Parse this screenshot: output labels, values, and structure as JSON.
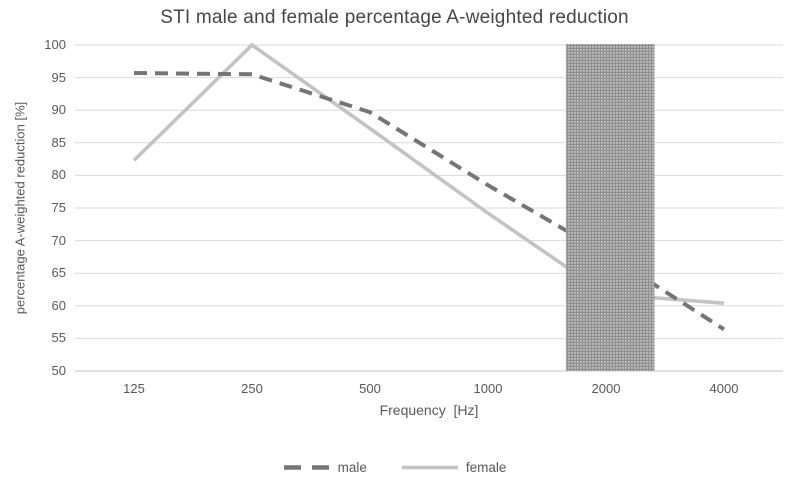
{
  "chart_data": {
    "type": "line",
    "title": "STI male and female percentage A-weighted reduction",
    "xlabel": "Frequency  [Hz]",
    "ylabel": "percentage A-weighted reduction [%]",
    "x_axis_type": "category",
    "categories": [
      "125",
      "250",
      "500",
      "1000",
      "2000",
      "4000"
    ],
    "series": [
      {
        "name": "male",
        "line_style": "dashed",
        "color": "#757575",
        "values": [
          95.7,
          95.5,
          89.7,
          78.5,
          68.0,
          56.4
        ]
      },
      {
        "name": "female",
        "line_style": "solid",
        "color": "#c3c3c3",
        "values": [
          82.3,
          100.0,
          87.2,
          74.2,
          61.8,
          60.4
        ]
      }
    ],
    "ylim": [
      50,
      100
    ],
    "y_ticks": [
      100,
      95,
      90,
      85,
      80,
      75,
      70,
      65,
      60,
      55,
      50
    ],
    "grid": "horizontal",
    "legend_position": "bottom",
    "shaded_band": {
      "covers_category": "2000",
      "from_category_index": 3.66,
      "to_category_index": 4.41,
      "fill_color": "#a8a8a8",
      "pattern": "crosshatch",
      "full_height": true
    },
    "colors": {
      "gridline": "#d9d9d9",
      "axis_line": "#c3c3c3",
      "text": "#595959",
      "title": "#464646"
    }
  }
}
